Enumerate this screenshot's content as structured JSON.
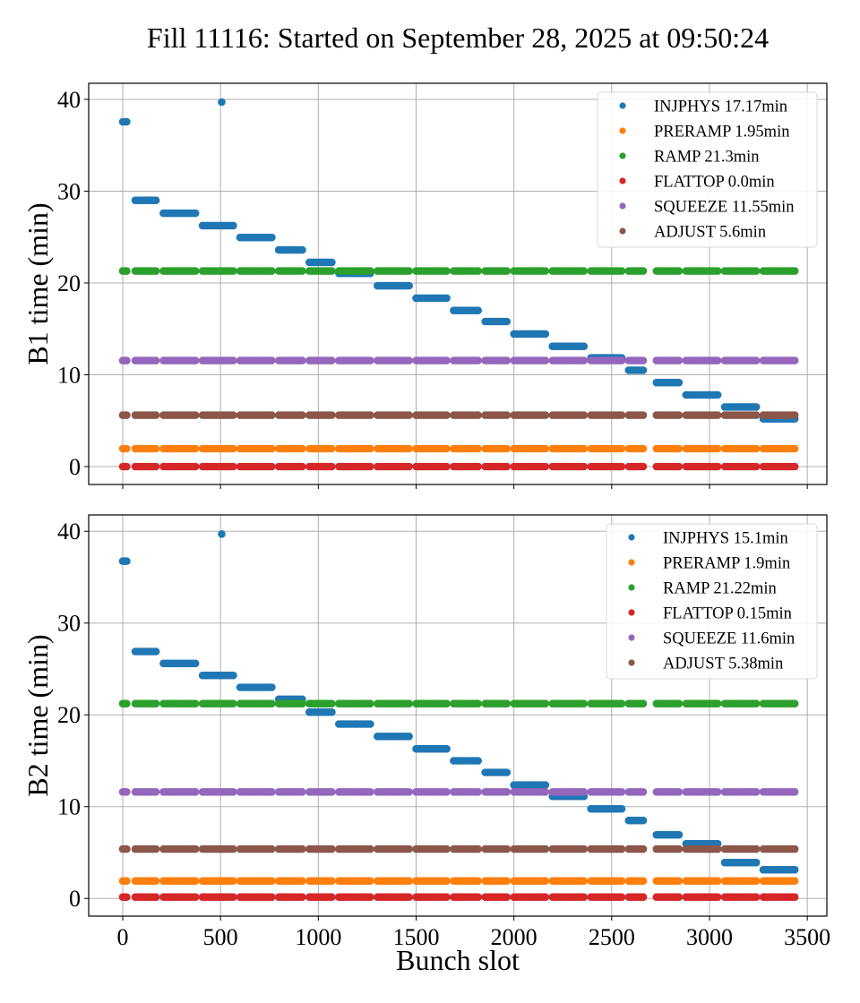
{
  "chart_data": {
    "type": "scatter",
    "title": "Fill 11116: Started on September 28, 2025 at 09:50:24",
    "xlabel": "Bunch slot",
    "xlim": [
      -174,
      3600
    ],
    "xticks": [
      0,
      500,
      1000,
      1500,
      2000,
      2500,
      3000,
      3500
    ],
    "grid": true,
    "train_segments": [
      [
        0,
        20
      ],
      [
        64,
        170
      ],
      [
        208,
        372
      ],
      [
        408,
        565
      ],
      [
        600,
        762
      ],
      [
        798,
        918
      ],
      [
        954,
        1069
      ],
      [
        1105,
        1266
      ],
      [
        1302,
        1464
      ],
      [
        1500,
        1656
      ],
      [
        1692,
        1817
      ],
      [
        1853,
        1964
      ],
      [
        2000,
        2161
      ],
      [
        2197,
        2358
      ],
      [
        2394,
        2551
      ],
      [
        2587,
        2661
      ],
      [
        2729,
        2844
      ],
      [
        2880,
        3042
      ],
      [
        3078,
        3239
      ],
      [
        3275,
        3436
      ]
    ],
    "colors": {
      "INJPHYS": "#1f77b4",
      "PRERAMP": "#ff7f0e",
      "RAMP": "#2ca02c",
      "FLATTOP": "#d62728",
      "SQUEEZE": "#9467bd",
      "ADJUST": "#8c564b"
    },
    "panels": [
      {
        "ylabel": "B1 time (min)",
        "ylim": [
          -1.95,
          41.75
        ],
        "yticks": [
          0,
          10,
          20,
          30,
          40
        ],
        "show_xtick_labels": false,
        "legend_position": "top-right",
        "series": [
          {
            "name": "INJPHYS",
            "legend": "INJPHYS 17.17min",
            "outliers": [
              [
                506,
                39.7
              ]
            ],
            "steps": [
              37.56,
              29.0,
              27.6,
              26.25,
              24.95,
              23.6,
              22.25,
              21.05,
              19.7,
              18.35,
              17.0,
              15.8,
              14.45,
              13.1,
              11.85,
              10.5,
              9.15,
              7.8,
              6.5,
              5.2
            ]
          },
          {
            "name": "PRERAMP",
            "legend": "PRERAMP 1.95min",
            "constant": 1.95
          },
          {
            "name": "RAMP",
            "legend": "RAMP 21.3min",
            "constant": 21.3
          },
          {
            "name": "FLATTOP",
            "legend": "FLATTOP 0.0min",
            "constant": 0.0
          },
          {
            "name": "SQUEEZE",
            "legend": "SQUEEZE 11.55min",
            "constant": 11.55
          },
          {
            "name": "ADJUST",
            "legend": "ADJUST 5.6min",
            "constant": 5.6
          }
        ]
      },
      {
        "ylabel": "B2 time (min)",
        "ylim": [
          -1.93,
          41.78
        ],
        "yticks": [
          0,
          10,
          20,
          30,
          40
        ],
        "show_xtick_labels": true,
        "legend_position": "top-right",
        "series": [
          {
            "name": "INJPHYS",
            "legend": "INJPHYS 15.1min",
            "outliers": [
              [
                506,
                39.7
              ]
            ],
            "steps": [
              36.75,
              26.9,
              25.6,
              24.3,
              23.0,
              21.7,
              20.3,
              19.0,
              17.65,
              16.3,
              15.0,
              13.73,
              12.35,
              11.12,
              9.76,
              8.49,
              6.93,
              5.95,
              3.9,
              3.12
            ]
          },
          {
            "name": "PRERAMP",
            "legend": "PRERAMP 1.9min",
            "constant": 1.9
          },
          {
            "name": "RAMP",
            "legend": "RAMP 21.22min",
            "constant": 21.22
          },
          {
            "name": "FLATTOP",
            "legend": "FLATTOP 0.15min",
            "constant": 0.15
          },
          {
            "name": "SQUEEZE",
            "legend": "SQUEEZE 11.6min",
            "constant": 11.6
          },
          {
            "name": "ADJUST",
            "legend": "ADJUST 5.38min",
            "constant": 5.38
          }
        ]
      }
    ]
  }
}
